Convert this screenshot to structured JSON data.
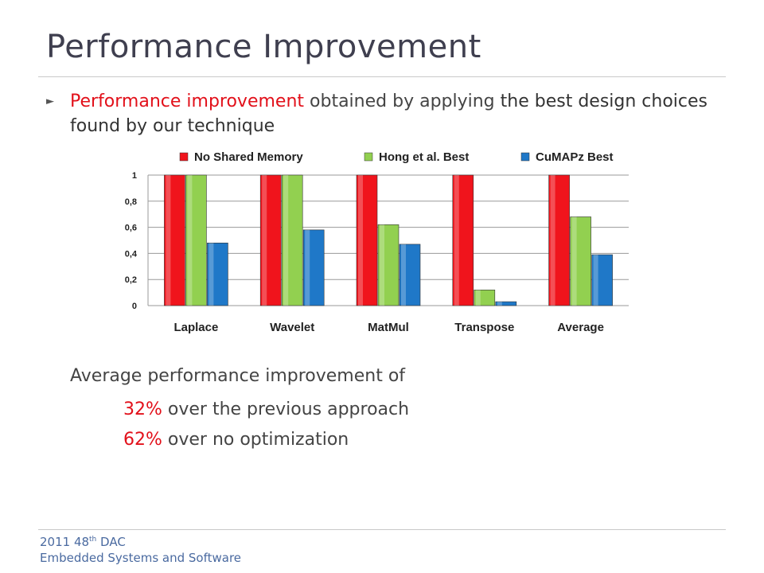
{
  "slide": {
    "title": "Performance Improvement",
    "bullet": {
      "part1": "Performance improvement",
      "part2": " obtained by applying ",
      "part3": "the best design choices found by our technique"
    },
    "summary": {
      "heading": "Average performance improvement of",
      "line1_pct": "32%",
      "line1_text": " over the previous approach",
      "line2_pct": "62%",
      "line2_text": " over no optimization"
    },
    "footer": {
      "year_prefix": "2011 48",
      "sup": "th",
      "suffix": " DAC",
      "line2": "Embedded Systems and Software"
    }
  },
  "colors": {
    "accent_red": "#e2101a",
    "series_red": "#f0141c",
    "series_green": "#92d050",
    "series_blue": "#1f78c8"
  },
  "chart_data": {
    "type": "bar",
    "categories": [
      "Laplace",
      "Wavelet",
      "MatMul",
      "Transpose",
      "Average"
    ],
    "series": [
      {
        "name": "No Shared Memory",
        "values": [
          1,
          1,
          1,
          1,
          1
        ],
        "color": "#f0141c"
      },
      {
        "name": "Hong et al. Best",
        "values": [
          1,
          1,
          0.62,
          0.12,
          0.68
        ],
        "color": "#92d050"
      },
      {
        "name": "CuMAPz Best",
        "values": [
          0.48,
          0.58,
          0.47,
          0.03,
          0.39
        ],
        "color": "#1f78c8"
      }
    ],
    "ylim": [
      0,
      1
    ],
    "yticks": [
      "0",
      "0,2",
      "0,4",
      "0,6",
      "0,8",
      "1"
    ],
    "grid": true,
    "legend": "top"
  }
}
